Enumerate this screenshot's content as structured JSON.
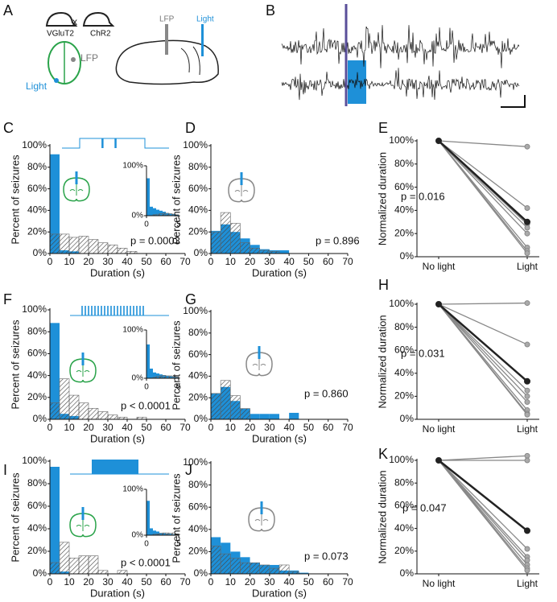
{
  "diagram": {
    "label_A": "A",
    "mouse_left": "VGluT2",
    "cross": "x",
    "mouse_right": "ChR2",
    "lfp_top": "LFP",
    "light_top": "Light",
    "lfp_side": "LFP",
    "light_side": "Light",
    "label_B": "B"
  },
  "chart_data": [
    {
      "type": "histogram",
      "label": "C",
      "xlabel": "Duration (s)",
      "ylabel": "Percent of seizures",
      "annotation": "p = 0.0003",
      "bins": [
        0,
        5,
        10,
        15,
        20,
        25,
        30,
        35,
        40,
        45,
        50,
        55,
        60,
        65,
        70
      ],
      "series": [
        {
          "color": "#1e90d8",
          "values": [
            92,
            3,
            2,
            0,
            0,
            0,
            0,
            0,
            0,
            0,
            0,
            0,
            0,
            0
          ]
        },
        {
          "color": "#666666",
          "pattern": "hatch",
          "values": [
            18,
            18,
            15,
            16,
            13,
            10,
            8,
            5,
            2,
            0,
            0,
            0,
            0,
            0
          ]
        }
      ],
      "xlim": [
        0,
        70
      ],
      "xticks": [
        0,
        10,
        20,
        30,
        40,
        50,
        60,
        70
      ],
      "ylim": [
        0,
        100
      ],
      "yticks": [
        {
          "value": 0,
          "label": "0%"
        },
        {
          "value": 20,
          "label": "20%"
        },
        {
          "value": 40,
          "label": "40%"
        },
        {
          "value": 60,
          "label": "60%"
        },
        {
          "value": 80,
          "label": "80%"
        },
        {
          "value": 100,
          "label": "100%"
        }
      ]
    },
    {
      "type": "histogram",
      "bins": [
        0,
        0.5,
        1,
        1.5,
        2,
        2.5,
        3,
        3.5,
        4,
        4.5,
        5
      ],
      "series": [
        {
          "color": "#1e90d8",
          "values": [
            75,
            18,
            15,
            12,
            10,
            8,
            5,
            4,
            3,
            2
          ]
        },
        {
          "color": "#666666",
          "pattern": "hatch",
          "values": [
            0,
            0,
            2,
            3,
            4,
            5,
            5,
            4,
            3,
            2
          ]
        }
      ],
      "xlim": [
        0,
        5
      ],
      "xticks": [
        0,
        5
      ],
      "ylim": [
        0,
        100
      ],
      "yticks": [
        {
          "value": 0,
          "label": "0%"
        },
        {
          "value": 100,
          "label": "100%"
        }
      ]
    },
    {
      "type": "histogram",
      "label": "D",
      "xlabel": "Duration (s)",
      "ylabel": "Percent of seizures",
      "annotation": "p = 0.896",
      "bins": [
        0,
        5,
        10,
        15,
        20,
        25,
        30,
        35,
        40,
        45,
        50,
        55,
        60,
        65,
        70
      ],
      "series": [
        {
          "color": "#1e90d8",
          "values": [
            21,
            27,
            20,
            14,
            8,
            4,
            3,
            3,
            0,
            0,
            0,
            0,
            0,
            0
          ]
        },
        {
          "color": "#666666",
          "pattern": "hatch",
          "values": [
            20,
            38,
            28,
            10,
            5,
            3,
            2,
            0,
            0,
            0,
            0,
            0,
            0,
            0
          ]
        }
      ],
      "xlim": [
        0,
        70
      ],
      "xticks": [
        0,
        10,
        20,
        30,
        40,
        50,
        60,
        70
      ],
      "ylim": [
        0,
        100
      ],
      "yticks": [
        {
          "value": 0,
          "label": "0%"
        },
        {
          "value": 20,
          "label": "20%"
        },
        {
          "value": 40,
          "label": "40%"
        },
        {
          "value": 60,
          "label": "60%"
        },
        {
          "value": 80,
          "label": "80%"
        },
        {
          "value": 100,
          "label": "100%"
        }
      ]
    },
    {
      "type": "slope",
      "label": "E",
      "ylabel": "Normalized duration",
      "annotation": "p = 0.016",
      "categories": [
        "No light",
        "Light"
      ],
      "series": [
        {
          "color": "#888888",
          "values": [
            100,
            95
          ]
        },
        {
          "color": "#888888",
          "values": [
            100,
            42
          ]
        },
        {
          "color": "#888888",
          "values": [
            100,
            28
          ]
        },
        {
          "color": "#888888",
          "values": [
            100,
            25
          ]
        },
        {
          "color": "#888888",
          "values": [
            100,
            20
          ]
        },
        {
          "color": "#888888",
          "values": [
            100,
            8
          ]
        },
        {
          "color": "#888888",
          "values": [
            100,
            5
          ]
        },
        {
          "color": "#888888",
          "values": [
            100,
            3
          ]
        },
        {
          "color": "#222222",
          "line_width": 2.5,
          "values": [
            100,
            30
          ]
        }
      ],
      "ylim": [
        0,
        100
      ],
      "yticks": [
        {
          "value": 0,
          "label": "0%"
        },
        {
          "value": 20,
          "label": "20%"
        },
        {
          "value": 40,
          "label": "40%"
        },
        {
          "value": 60,
          "label": "60%"
        },
        {
          "value": 80,
          "label": "80%"
        },
        {
          "value": 100,
          "label": "100%"
        }
      ]
    },
    {
      "type": "histogram",
      "label": "F",
      "xlabel": "Duration (s)",
      "ylabel": "Percent of seizures",
      "annotation": "p < 0.0001",
      "bins": [
        0,
        5,
        10,
        15,
        20,
        25,
        30,
        35,
        40,
        45,
        50,
        55,
        60,
        65,
        70
      ],
      "series": [
        {
          "color": "#1e90d8",
          "values": [
            88,
            5,
            3,
            0,
            0,
            0,
            0,
            0,
            0,
            0,
            0,
            0,
            0,
            0
          ]
        },
        {
          "color": "#666666",
          "pattern": "hatch",
          "values": [
            15,
            37,
            22,
            15,
            10,
            7,
            4,
            2,
            0,
            2,
            0,
            0,
            0,
            0
          ]
        }
      ],
      "xlim": [
        0,
        70
      ],
      "xticks": [
        0,
        10,
        20,
        30,
        40,
        50,
        60,
        70
      ],
      "ylim": [
        0,
        100
      ],
      "yticks": [
        {
          "value": 0,
          "label": "0%"
        },
        {
          "value": 20,
          "label": "20%"
        },
        {
          "value": 40,
          "label": "40%"
        },
        {
          "value": 60,
          "label": "60%"
        },
        {
          "value": 80,
          "label": "80%"
        },
        {
          "value": 100,
          "label": "100%"
        }
      ]
    },
    {
      "type": "histogram",
      "bins": [
        0,
        0.5,
        1,
        1.5,
        2,
        2.5,
        3,
        3.5,
        4,
        4.5,
        5
      ],
      "series": [
        {
          "color": "#1e90d8",
          "values": [
            70,
            20,
            12,
            10,
            8,
            6,
            5,
            4,
            3,
            2
          ]
        },
        {
          "color": "#666666",
          "pattern": "hatch",
          "values": [
            0,
            0,
            2,
            4,
            5,
            6,
            5,
            5,
            4,
            3
          ]
        }
      ],
      "xlim": [
        0,
        5
      ],
      "xticks": [
        0,
        5
      ],
      "ylim": [
        0,
        100
      ],
      "yticks": [
        {
          "value": 0,
          "label": "0%"
        },
        {
          "value": 100,
          "label": "100%"
        }
      ]
    },
    {
      "type": "histogram",
      "label": "G",
      "xlabel": "Duration (s)",
      "ylabel": "Percent of seizures",
      "annotation": "p = 0.860",
      "bins": [
        0,
        5,
        10,
        15,
        20,
        25,
        30,
        35,
        40,
        45,
        50,
        55,
        60,
        65,
        70
      ],
      "series": [
        {
          "color": "#1e90d8",
          "values": [
            24,
            30,
            17,
            10,
            5,
            5,
            5,
            0,
            6,
            0,
            0,
            0,
            0,
            0
          ]
        },
        {
          "color": "#666666",
          "pattern": "hatch",
          "values": [
            24,
            36,
            22,
            10,
            0,
            0,
            0,
            0,
            0,
            0,
            0,
            0,
            0,
            0
          ]
        }
      ],
      "xlim": [
        0,
        70
      ],
      "xticks": [
        0,
        10,
        20,
        30,
        40,
        50,
        60,
        70
      ],
      "ylim": [
        0,
        100
      ],
      "yticks": [
        {
          "value": 0,
          "label": "0%"
        },
        {
          "value": 20,
          "label": "20%"
        },
        {
          "value": 40,
          "label": "40%"
        },
        {
          "value": 60,
          "label": "60%"
        },
        {
          "value": 80,
          "label": "80%"
        },
        {
          "value": 100,
          "label": "100%"
        }
      ]
    },
    {
      "type": "slope",
      "label": "H",
      "ylabel": "Normalized duration",
      "annotation": "p = 0.031",
      "categories": [
        "No light",
        "Light"
      ],
      "series": [
        {
          "color": "#888888",
          "values": [
            100,
            101
          ]
        },
        {
          "color": "#888888",
          "values": [
            100,
            65
          ]
        },
        {
          "color": "#888888",
          "values": [
            100,
            25
          ]
        },
        {
          "color": "#888888",
          "values": [
            100,
            20
          ]
        },
        {
          "color": "#888888",
          "values": [
            100,
            15
          ]
        },
        {
          "color": "#888888",
          "values": [
            100,
            8
          ]
        },
        {
          "color": "#888888",
          "values": [
            100,
            5
          ]
        },
        {
          "color": "#888888",
          "values": [
            100,
            4
          ]
        },
        {
          "color": "#222222",
          "line_width": 2.5,
          "values": [
            100,
            33
          ]
        }
      ],
      "ylim": [
        0,
        100
      ],
      "yticks": [
        {
          "value": 0,
          "label": "0%"
        },
        {
          "value": 20,
          "label": "20%"
        },
        {
          "value": 40,
          "label": "40%"
        },
        {
          "value": 60,
          "label": "60%"
        },
        {
          "value": 80,
          "label": "80%"
        },
        {
          "value": 100,
          "label": "100%"
        }
      ]
    },
    {
      "type": "histogram",
      "label": "I",
      "xlabel": "Duration (s)",
      "ylabel": "Percent of seizures",
      "annotation": "p < 0.0001",
      "bins": [
        0,
        5,
        10,
        15,
        20,
        25,
        30,
        35,
        40,
        45,
        50,
        55,
        60,
        65,
        70
      ],
      "series": [
        {
          "color": "#1e90d8",
          "values": [
            95,
            2,
            0,
            0,
            0,
            0,
            0,
            0,
            0,
            0,
            0,
            0,
            0,
            0
          ]
        },
        {
          "color": "#666666",
          "pattern": "hatch",
          "values": [
            10,
            28,
            14,
            16,
            16,
            3,
            0,
            3,
            0,
            0,
            0,
            0,
            0,
            0
          ]
        }
      ],
      "xlim": [
        0,
        70
      ],
      "xticks": [
        0,
        10,
        20,
        30,
        40,
        50,
        60,
        70
      ],
      "ylim": [
        0,
        100
      ],
      "yticks": [
        {
          "value": 0,
          "label": "0%"
        },
        {
          "value": 20,
          "label": "20%"
        },
        {
          "value": 40,
          "label": "40%"
        },
        {
          "value": 60,
          "label": "60%"
        },
        {
          "value": 80,
          "label": "80%"
        },
        {
          "value": 100,
          "label": "100%"
        }
      ]
    },
    {
      "type": "histogram",
      "bins": [
        0,
        0.5,
        1,
        1.5,
        2,
        2.5,
        3,
        3.5,
        4,
        4.5,
        5
      ],
      "series": [
        {
          "color": "#1e90d8",
          "values": [
            75,
            15,
            10,
            8,
            5,
            4,
            3,
            3,
            2,
            2
          ]
        },
        {
          "color": "#666666",
          "pattern": "hatch",
          "values": [
            0,
            0,
            2,
            3,
            4,
            5,
            5,
            4,
            5,
            3
          ]
        }
      ],
      "xlim": [
        0,
        5
      ],
      "xticks": [
        0,
        5
      ],
      "ylim": [
        0,
        100
      ],
      "yticks": [
        {
          "value": 0,
          "label": "0%"
        },
        {
          "value": 100,
          "label": "100%"
        }
      ]
    },
    {
      "type": "histogram",
      "label": "J",
      "xlabel": "Duration (s)",
      "ylabel": "Percent of seizures",
      "annotation": "p = 0.073",
      "bins": [
        0,
        5,
        10,
        15,
        20,
        25,
        30,
        35,
        40,
        45,
        50,
        55,
        60,
        65,
        70
      ],
      "series": [
        {
          "color": "#1e90d8",
          "values": [
            33,
            28,
            20,
            15,
            10,
            8,
            8,
            3,
            3,
            1,
            0,
            0,
            0,
            0
          ]
        },
        {
          "color": "#666666",
          "pattern": "hatch",
          "values": [
            25,
            18,
            14,
            10,
            10,
            8,
            5,
            8,
            2,
            0,
            0,
            0,
            0,
            0
          ]
        }
      ],
      "xlim": [
        0,
        70
      ],
      "xticks": [
        0,
        10,
        20,
        30,
        40,
        50,
        60,
        70
      ],
      "ylim": [
        0,
        100
      ],
      "yticks": [
        {
          "value": 0,
          "label": "0%"
        },
        {
          "value": 20,
          "label": "20%"
        },
        {
          "value": 40,
          "label": "40%"
        },
        {
          "value": 60,
          "label": "60%"
        },
        {
          "value": 80,
          "label": "80%"
        },
        {
          "value": 100,
          "label": "100%"
        }
      ]
    },
    {
      "type": "slope",
      "label": "K",
      "ylabel": "Normalized duration",
      "annotation": "p = 0.047",
      "categories": [
        "No light",
        "Light"
      ],
      "series": [
        {
          "color": "#888888",
          "values": [
            100,
            104
          ]
        },
        {
          "color": "#888888",
          "values": [
            100,
            100
          ]
        },
        {
          "color": "#888888",
          "values": [
            100,
            22
          ]
        },
        {
          "color": "#888888",
          "values": [
            100,
            15
          ]
        },
        {
          "color": "#888888",
          "values": [
            100,
            12
          ]
        },
        {
          "color": "#888888",
          "values": [
            100,
            8
          ]
        },
        {
          "color": "#888888",
          "values": [
            100,
            5
          ]
        },
        {
          "color": "#888888",
          "values": [
            100,
            3
          ]
        },
        {
          "color": "#222222",
          "line_width": 2.5,
          "values": [
            100,
            38
          ]
        }
      ],
      "ylim": [
        0,
        100
      ],
      "yticks": [
        {
          "value": 0,
          "label": "0%"
        },
        {
          "value": 20,
          "label": "20%"
        },
        {
          "value": 40,
          "label": "40%"
        },
        {
          "value": 60,
          "label": "60%"
        },
        {
          "value": 80,
          "label": "80%"
        },
        {
          "value": 100,
          "label": "100%"
        }
      ]
    }
  ]
}
